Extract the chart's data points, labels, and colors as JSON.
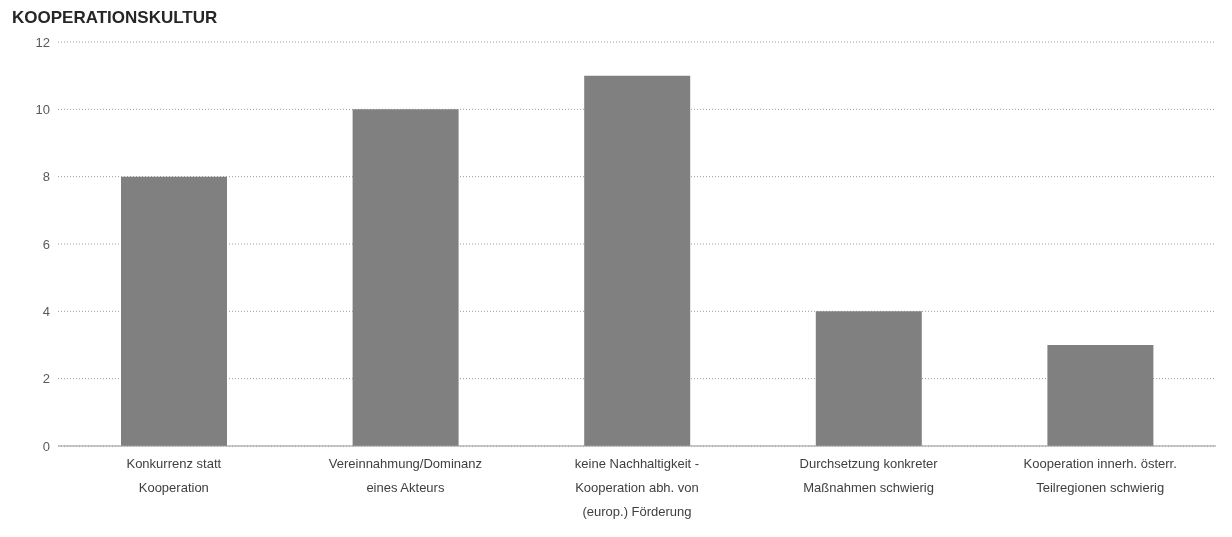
{
  "chart_data": {
    "type": "bar",
    "title": "KOOPERATIONSKULTUR",
    "categories": [
      "Konkurrenz statt Kooperation",
      "Vereinnahmung/Dominanz eines Akteurs",
      "keine Nachhaltigkeit - Kooperation abh. von (europ.) Förderung",
      "Durchsetzung konkreter Maßnahmen schwierig",
      "Kooperation innerh. österr. Teilregionen schwierig"
    ],
    "values": [
      8,
      10,
      11,
      4,
      3
    ],
    "color": "#808080",
    "ylim": [
      0,
      12
    ],
    "yticks": [
      0,
      2,
      4,
      6,
      8,
      10,
      12
    ],
    "grid": "y"
  }
}
